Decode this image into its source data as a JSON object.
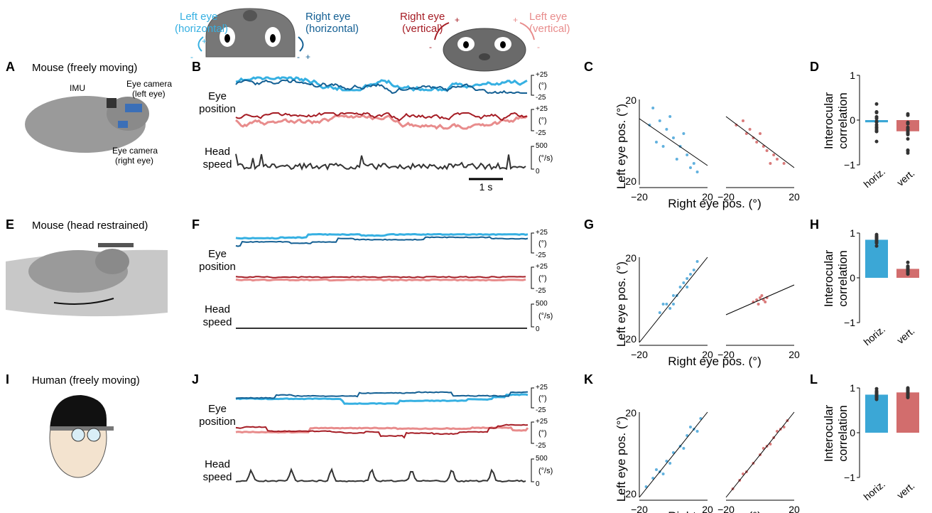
{
  "colors": {
    "left_h": "#36b0e2",
    "right_h": "#135f93",
    "right_v": "#a51c24",
    "left_v": "#e88c8c",
    "head": "#333333",
    "bar_h": "#3ba7d6",
    "bar_v": "#d26d6d",
    "scatter_h": "#3a9ed6",
    "scatter_v": "#d05a5a"
  },
  "legend": {
    "left_h": [
      "Left eye",
      "(horizontal)"
    ],
    "right_h": [
      "Right eye",
      "(horizontal)"
    ],
    "right_v": [
      "Right eye",
      "(vertical)"
    ],
    "left_v": [
      "Left eye",
      "(vertical)"
    ],
    "plus": "+",
    "minus": "-"
  },
  "panel_letters": [
    "A",
    "B",
    "C",
    "D",
    "E",
    "F",
    "G",
    "H",
    "I",
    "J",
    "K",
    "L"
  ],
  "rows": [
    {
      "title": "Mouse (freely moving)",
      "illustration_labels": [
        "IMU",
        "Eye camera",
        "(left eye)",
        "Eye camera",
        "(right eye)"
      ],
      "trace_labels": {
        "eye": [
          "Eye",
          "position"
        ],
        "head": [
          "Head",
          "speed"
        ]
      },
      "scale_labels": {
        "eye": [
          "+25",
          "(°)",
          "-25"
        ],
        "head": [
          "500",
          "(°/s)",
          "0"
        ]
      },
      "scalebar": "1 s"
    },
    {
      "title": "Mouse (head restrained)",
      "illustration_labels": [],
      "trace_labels": {
        "eye": [
          "Eye",
          "position"
        ],
        "head": [
          "Head",
          "speed"
        ]
      },
      "scale_labels": {
        "eye": [
          "+25",
          "(°)",
          "-25"
        ],
        "head": [
          "500",
          "(°/s)",
          "0"
        ]
      },
      "scalebar": ""
    },
    {
      "title": "Human (freely moving)",
      "illustration_labels": [],
      "trace_labels": {
        "eye": [
          "Eye",
          "position"
        ],
        "head": [
          "Head",
          "speed"
        ]
      },
      "scale_labels": {
        "eye": [
          "+25",
          "(°)",
          "-25"
        ],
        "head": [
          "500",
          "(°/s)",
          "0"
        ]
      },
      "scalebar": ""
    }
  ],
  "chart_data": [
    {
      "type": "scatter",
      "panel": "C",
      "xlabel": "Right eye pos. (°)",
      "ylabel": "Left eye pos. (°)",
      "xticks": [
        "−20",
        "20",
        "−20",
        "20"
      ],
      "yticks": [
        "20",
        "−20"
      ],
      "xlim": [
        -20,
        20
      ],
      "ylim": [
        -20,
        20
      ],
      "series": [
        {
          "fit_slope": -0.55,
          "fit_intercept": 0,
          "points": [
            [
              -12,
              16
            ],
            [
              -8,
              10
            ],
            [
              -4,
              6
            ],
            [
              0,
              2
            ],
            [
              4,
              -2
            ],
            [
              8,
              -6
            ],
            [
              12,
              -10
            ],
            [
              -14,
              8
            ],
            [
              -6,
              -2
            ],
            [
              2,
              -8
            ],
            [
              10,
              -12
            ],
            [
              6,
              4
            ],
            [
              -2,
              12
            ],
            [
              14,
              -14
            ],
            [
              -10,
              0
            ]
          ]
        },
        {
          "fit_slope": -0.6,
          "fit_intercept": 0,
          "points": [
            [
              -14,
              8
            ],
            [
              -8,
              4
            ],
            [
              -2,
              0
            ],
            [
              4,
              -4
            ],
            [
              10,
              -8
            ],
            [
              -10,
              10
            ],
            [
              -4,
              2
            ],
            [
              2,
              -2
            ],
            [
              8,
              -6
            ],
            [
              14,
              -10
            ],
            [
              0,
              4
            ],
            [
              6,
              -10
            ],
            [
              -6,
              6
            ]
          ]
        }
      ]
    },
    {
      "type": "bar",
      "panel": "D",
      "categories": [
        "horiz.",
        "vert."
      ],
      "values": [
        -0.05,
        -0.25
      ],
      "ylabel": "Interocular correlation",
      "yticks": [
        "1",
        "0",
        "−1"
      ],
      "ylim": [
        -1,
        1
      ]
    },
    {
      "type": "scatter",
      "panel": "G",
      "xlabel": "Right eye pos. (°)",
      "ylabel": "Left eye pos. (°)",
      "xticks": [
        "−20",
        "20",
        "−20",
        "20"
      ],
      "yticks": [
        "20",
        "−20"
      ],
      "xlim": [
        -20,
        20
      ],
      "ylim": [
        -20,
        20
      ],
      "series": [
        {
          "fit_slope": 1.0,
          "fit_intercept": 0,
          "points": [
            [
              -8,
              -6
            ],
            [
              -4,
              -2
            ],
            [
              0,
              2
            ],
            [
              4,
              6
            ],
            [
              8,
              10
            ],
            [
              12,
              14
            ],
            [
              -6,
              -2
            ],
            [
              2,
              2
            ],
            [
              6,
              8
            ],
            [
              10,
              12
            ],
            [
              -2,
              -4
            ],
            [
              14,
              18
            ],
            [
              0,
              -2
            ],
            [
              8,
              6
            ]
          ]
        },
        {
          "fit_slope": 0.35,
          "fit_intercept": 0,
          "points": [
            [
              -4,
              -1
            ],
            [
              -2,
              0
            ],
            [
              0,
              1
            ],
            [
              2,
              0
            ],
            [
              4,
              1
            ],
            [
              -1,
              -2
            ],
            [
              1,
              2
            ],
            [
              3,
              -1
            ]
          ]
        }
      ]
    },
    {
      "type": "bar",
      "panel": "H",
      "categories": [
        "horiz.",
        "vert."
      ],
      "values": [
        0.85,
        0.2
      ],
      "ylabel": "Interocular correlation",
      "yticks": [
        "1",
        "0",
        "−1"
      ],
      "ylim": [
        -1,
        1
      ]
    },
    {
      "type": "scatter",
      "panel": "K",
      "xlabel": "Right eye pos. (°)",
      "ylabel": "Left eye pos. (°)",
      "xticks": [
        "−20",
        "20",
        "−20",
        "20"
      ],
      "yticks": [
        "20",
        "−20"
      ],
      "xlim": [
        -20,
        20
      ],
      "ylim": [
        -20,
        20
      ],
      "series": [
        {
          "fit_slope": 1.0,
          "fit_intercept": 0,
          "points": [
            [
              -16,
              -15
            ],
            [
              -12,
              -11
            ],
            [
              -8,
              -8
            ],
            [
              -4,
              -3
            ],
            [
              0,
              1
            ],
            [
              4,
              4
            ],
            [
              8,
              9
            ],
            [
              12,
              12
            ],
            [
              16,
              17
            ],
            [
              -10,
              -7
            ],
            [
              -2,
              -4
            ],
            [
              6,
              3
            ],
            [
              10,
              13
            ],
            [
              14,
              11
            ],
            [
              -6,
              -9
            ]
          ]
        },
        {
          "fit_slope": 1.0,
          "fit_intercept": 0,
          "points": [
            [
              -16,
              -16
            ],
            [
              -12,
              -12
            ],
            [
              -8,
              -8
            ],
            [
              -4,
              -4
            ],
            [
              0,
              0
            ],
            [
              4,
              4
            ],
            [
              8,
              8
            ],
            [
              12,
              12
            ],
            [
              16,
              16
            ],
            [
              -10,
              -9
            ],
            [
              2,
              3
            ],
            [
              10,
              11
            ],
            [
              6,
              5
            ],
            [
              14,
              13
            ]
          ]
        }
      ]
    },
    {
      "type": "bar",
      "panel": "L",
      "categories": [
        "horiz.",
        "vert."
      ],
      "values": [
        0.85,
        0.9
      ],
      "ylabel": "Interocular correlation",
      "yticks": [
        "1",
        "0",
        "−1"
      ],
      "ylim": [
        -1,
        1
      ]
    }
  ]
}
